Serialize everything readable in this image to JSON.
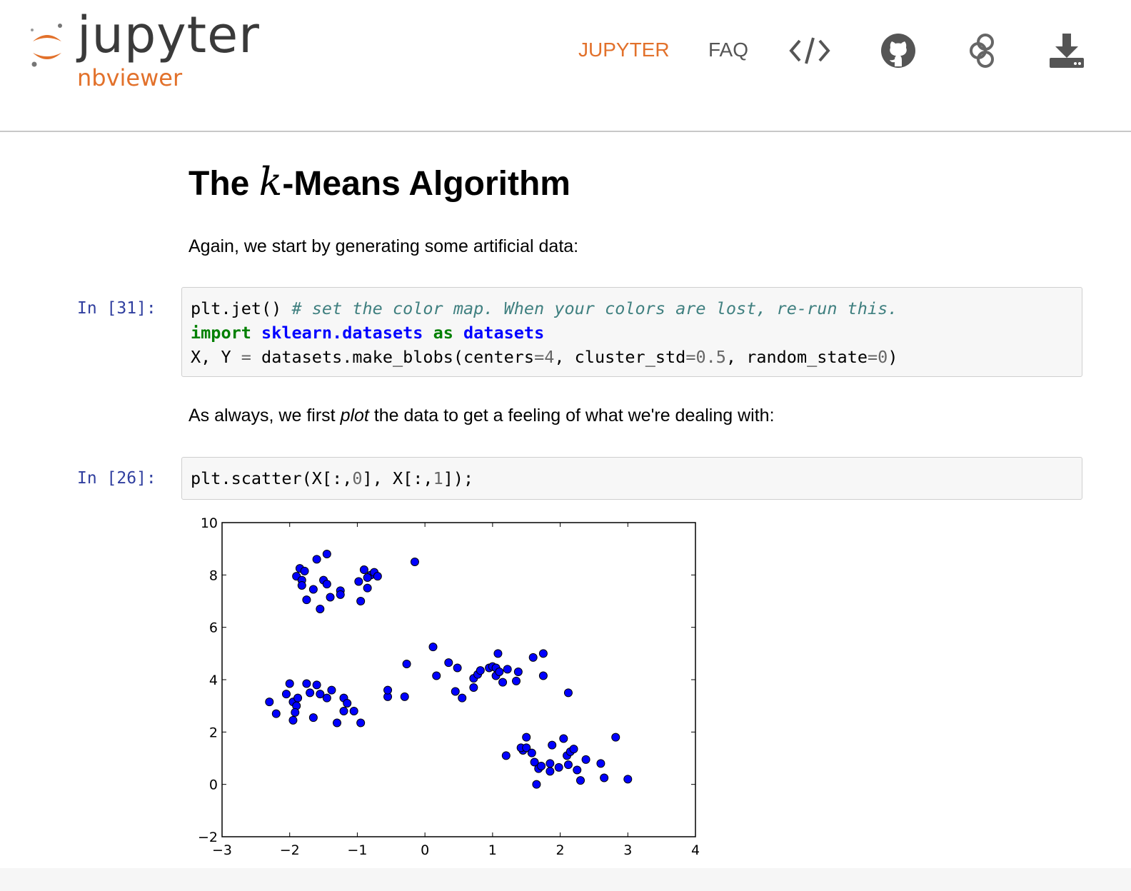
{
  "nav": {
    "logo_word": "jupyter",
    "logo_sub": "nbviewer",
    "links": [
      "JUPYTER",
      "FAQ"
    ],
    "icons": [
      "code-icon",
      "github-icon",
      "binder-icon",
      "download-icon"
    ],
    "accent_color": "#e2712b"
  },
  "notebook": {
    "title_prefix": "The ",
    "title_math": "k",
    "title_suffix": "-Means Algorithm",
    "md1": "Again, we start by generating some artificial data:",
    "cell1": {
      "prompt": "In [31]:",
      "line1_code": "plt.jet() ",
      "line1_comment": "# set the color map. When your colors are lost, re-run this.",
      "line2_kw1": "import",
      "line2_mod": "sklearn.datasets",
      "line2_kw2": "as",
      "line2_alias": "datasets",
      "line3_a": "X, Y ",
      "line3_eq1": "=",
      "line3_b": " datasets.make_blobs(centers",
      "line3_eq2": "=",
      "line3_n1": "4",
      "line3_c": ", cluster_std",
      "line3_eq3": "=",
      "line3_n2": "0.5",
      "line3_d": ", random_state",
      "line3_eq4": "=",
      "line3_n3": "0",
      "line3_e": ")"
    },
    "md2_a": "As always, we first ",
    "md2_em": "plot",
    "md2_b": " the data to get a feeling of what we're dealing with:",
    "cell2": {
      "prompt": "In [26]:",
      "code_a": "plt.scatter(X[:,",
      "code_n1": "0",
      "code_b": "], X[:,",
      "code_n2": "1",
      "code_c": "]);"
    }
  },
  "chart_data": {
    "type": "scatter",
    "xlim": [
      -3,
      4
    ],
    "ylim": [
      -2,
      10
    ],
    "xticks": [
      "−3",
      "−2",
      "−1",
      "0",
      "1",
      "2",
      "3",
      "4"
    ],
    "yticks": [
      "−2",
      "0",
      "2",
      "4",
      "6",
      "8",
      "10"
    ],
    "xtick_values": [
      -3,
      -2,
      -1,
      0,
      1,
      2,
      3,
      4
    ],
    "ytick_values": [
      -2,
      0,
      2,
      4,
      6,
      8,
      10
    ],
    "point_color": "#0000ff",
    "grid": false,
    "points": [
      [
        -1.45,
        8.8
      ],
      [
        -1.6,
        8.6
      ],
      [
        -1.85,
        8.25
      ],
      [
        -1.78,
        8.15
      ],
      [
        -1.9,
        7.95
      ],
      [
        -1.82,
        7.8
      ],
      [
        -1.5,
        7.8
      ],
      [
        -1.45,
        7.65
      ],
      [
        -1.65,
        7.45
      ],
      [
        -1.82,
        7.6
      ],
      [
        -1.25,
        7.4
      ],
      [
        -1.25,
        7.25
      ],
      [
        -1.4,
        7.15
      ],
      [
        -1.75,
        7.05
      ],
      [
        -1.55,
        6.7
      ],
      [
        -0.95,
        7.0
      ],
      [
        -0.98,
        7.75
      ],
      [
        -0.9,
        8.2
      ],
      [
        -0.8,
        8.0
      ],
      [
        -0.75,
        8.1
      ],
      [
        -0.7,
        7.95
      ],
      [
        -0.85,
        7.5
      ],
      [
        -0.85,
        7.9
      ],
      [
        -0.15,
        8.5
      ],
      [
        -2.3,
        3.15
      ],
      [
        -2.2,
        2.7
      ],
      [
        -2.0,
        3.85
      ],
      [
        -2.05,
        3.45
      ],
      [
        -1.95,
        3.15
      ],
      [
        -1.9,
        3.0
      ],
      [
        -1.92,
        2.75
      ],
      [
        -1.95,
        2.45
      ],
      [
        -1.88,
        3.3
      ],
      [
        -1.75,
        3.85
      ],
      [
        -1.6,
        3.8
      ],
      [
        -1.55,
        3.45
      ],
      [
        -1.7,
        3.5
      ],
      [
        -1.65,
        2.55
      ],
      [
        -1.45,
        3.3
      ],
      [
        -1.38,
        3.6
      ],
      [
        -1.3,
        2.35
      ],
      [
        -1.2,
        3.3
      ],
      [
        -1.15,
        3.1
      ],
      [
        -1.2,
        2.8
      ],
      [
        -1.05,
        2.8
      ],
      [
        -0.95,
        2.35
      ],
      [
        -0.55,
        3.35
      ],
      [
        -0.55,
        3.6
      ],
      [
        -0.3,
        3.35
      ],
      [
        -0.27,
        4.6
      ],
      [
        0.12,
        5.25
      ],
      [
        0.17,
        4.15
      ],
      [
        0.35,
        4.65
      ],
      [
        0.48,
        4.45
      ],
      [
        0.45,
        3.55
      ],
      [
        0.55,
        3.3
      ],
      [
        0.72,
        3.7
      ],
      [
        0.72,
        4.05
      ],
      [
        0.78,
        4.2
      ],
      [
        0.82,
        4.35
      ],
      [
        0.95,
        4.45
      ],
      [
        1.0,
        4.5
      ],
      [
        1.05,
        4.45
      ],
      [
        1.05,
        4.15
      ],
      [
        1.1,
        4.3
      ],
      [
        1.15,
        3.9
      ],
      [
        1.22,
        4.4
      ],
      [
        1.08,
        5.0
      ],
      [
        1.35,
        3.95
      ],
      [
        1.38,
        4.3
      ],
      [
        1.6,
        4.85
      ],
      [
        1.75,
        5.0
      ],
      [
        1.75,
        4.15
      ],
      [
        2.12,
        3.5
      ],
      [
        1.2,
        1.1
      ],
      [
        1.45,
        1.3
      ],
      [
        1.42,
        1.4
      ],
      [
        1.5,
        1.8
      ],
      [
        1.5,
        1.4
      ],
      [
        1.58,
        1.2
      ],
      [
        1.62,
        0.85
      ],
      [
        1.68,
        0.6
      ],
      [
        1.72,
        0.7
      ],
      [
        1.65,
        0.0
      ],
      [
        1.85,
        0.8
      ],
      [
        1.88,
        1.5
      ],
      [
        1.85,
        0.5
      ],
      [
        2.05,
        1.75
      ],
      [
        2.1,
        1.1
      ],
      [
        2.15,
        1.25
      ],
      [
        2.2,
        1.35
      ],
      [
        2.12,
        0.75
      ],
      [
        2.25,
        0.55
      ],
      [
        2.3,
        0.15
      ],
      [
        2.38,
        0.95
      ],
      [
        2.6,
        0.8
      ],
      [
        2.65,
        0.25
      ],
      [
        2.82,
        1.8
      ],
      [
        3.0,
        0.2
      ],
      [
        1.98,
        0.65
      ]
    ]
  }
}
